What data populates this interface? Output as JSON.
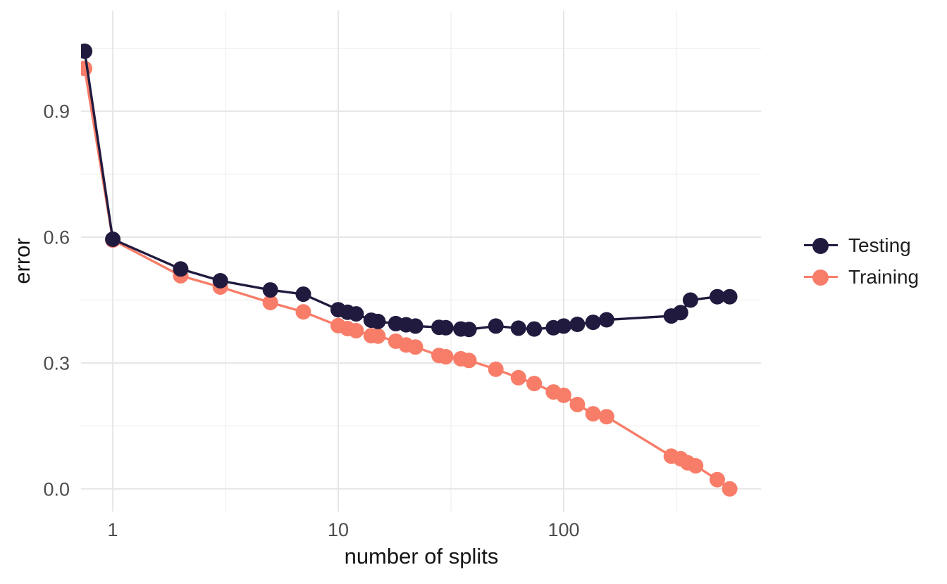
{
  "chart_data": {
    "type": "line",
    "title": "",
    "xlabel": "number of splits",
    "ylabel": "error",
    "x_scale": "log10",
    "grid": true,
    "legend_position": "right",
    "xlim": [
      0.723,
      750
    ],
    "ylim": [
      -0.054,
      1.14
    ],
    "x_ticks": [
      1,
      10,
      100
    ],
    "x_tick_labels": [
      "1",
      "10",
      "100"
    ],
    "y_ticks": [
      0.0,
      0.3,
      0.6,
      0.9
    ],
    "y_tick_labels": [
      "0.0",
      "0.3",
      "0.6",
      "0.9"
    ],
    "x_minor_gridlines": [
      3.162,
      31.62,
      316.2
    ],
    "y_minor_gridlines": [
      0.15,
      0.45,
      0.75,
      1.05
    ],
    "series": [
      {
        "name": "Testing",
        "color": "#211a3f",
        "x": [
          0.75,
          1,
          2,
          3,
          5,
          7,
          10,
          11,
          12,
          14,
          15,
          18,
          20,
          22,
          28,
          30,
          35,
          38,
          50,
          63,
          74,
          90,
          100,
          115,
          135,
          155,
          300,
          330,
          365,
          480,
          545
        ],
        "y": [
          1.043,
          0.595,
          0.524,
          0.496,
          0.474,
          0.464,
          0.427,
          0.421,
          0.417,
          0.402,
          0.399,
          0.394,
          0.391,
          0.388,
          0.385,
          0.384,
          0.381,
          0.38,
          0.388,
          0.383,
          0.381,
          0.384,
          0.388,
          0.392,
          0.397,
          0.403,
          0.412,
          0.42,
          0.45,
          0.458,
          0.458
        ]
      },
      {
        "name": "Training",
        "color": "#f87d69",
        "x": [
          0.75,
          1,
          2,
          3,
          5,
          7,
          10,
          11,
          12,
          14,
          15,
          18,
          20,
          22,
          28,
          30,
          35,
          38,
          50,
          63,
          74,
          90,
          100,
          115,
          135,
          155,
          300,
          330,
          355,
          385,
          480,
          545
        ],
        "y": [
          1.002,
          0.593,
          0.508,
          0.481,
          0.444,
          0.422,
          0.389,
          0.382,
          0.377,
          0.365,
          0.364,
          0.352,
          0.343,
          0.338,
          0.318,
          0.315,
          0.31,
          0.306,
          0.285,
          0.265,
          0.251,
          0.231,
          0.223,
          0.201,
          0.179,
          0.172,
          0.078,
          0.072,
          0.062,
          0.055,
          0.022,
          0.0
        ]
      }
    ]
  },
  "colors": {
    "background": "#ffffff",
    "grid_major": "#e6e6e6",
    "grid_minor": "#f1f1f1",
    "tick_label": "#4d4d4d",
    "axis_title": "#161616",
    "legend_text": "#1f1f1f"
  }
}
